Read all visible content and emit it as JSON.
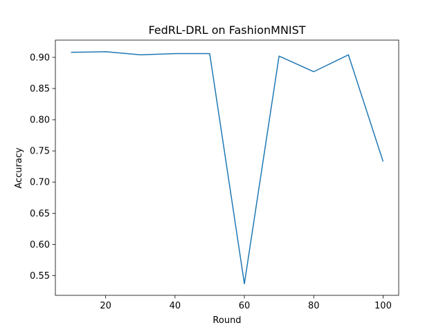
{
  "chart_data": {
    "type": "line",
    "title": "FedRL-DRL on FashionMNIST",
    "xlabel": "Round",
    "ylabel": "Accuracy",
    "x": [
      10,
      20,
      30,
      40,
      50,
      60,
      70,
      80,
      90,
      100
    ],
    "series": [
      {
        "values": [
          0.908,
          0.909,
          0.904,
          0.906,
          0.906,
          0.537,
          0.902,
          0.877,
          0.904,
          0.733
        ],
        "color": "#1f77b4"
      }
    ],
    "xlim": [
      5.5,
      104.5
    ],
    "ylim": [
      0.5184,
      0.9276
    ],
    "xticks": [
      20,
      40,
      60,
      80,
      100
    ],
    "xtick_labels": [
      "20",
      "40",
      "60",
      "80",
      "100"
    ],
    "yticks": [
      0.55,
      0.6,
      0.65,
      0.7,
      0.75,
      0.8,
      0.85,
      0.9
    ],
    "ytick_labels": [
      "0.55",
      "0.60",
      "0.65",
      "0.70",
      "0.75",
      "0.80",
      "0.85",
      "0.90"
    ],
    "grid": false,
    "legend": "none"
  }
}
